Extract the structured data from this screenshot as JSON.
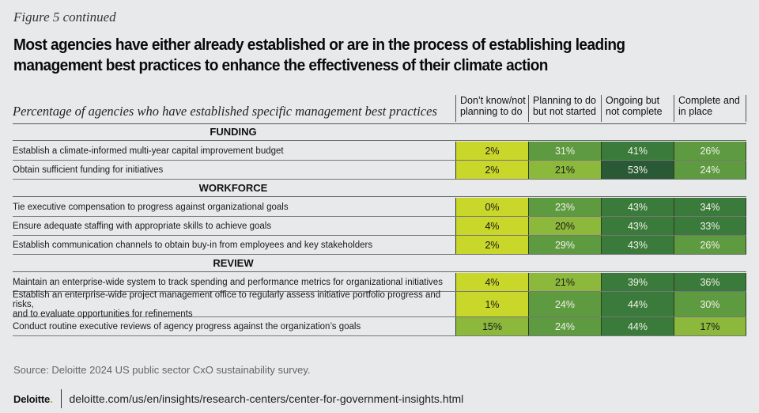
{
  "figure_label": "Figure 5 continued",
  "title_line1": "Most agencies have either already established or are in the process of establishing leading",
  "title_line2": "management best practices to enhance the effectiveness of their climate action",
  "source": "Source: Deloitte 2024 US public sector CxO sustainability survey.",
  "footer": {
    "logo": "Deloitte",
    "logo_dot": ".",
    "url": "deloitte.com/us/en/insights/research-centers/center-for-government-insights.html"
  },
  "colors": {
    "background": "#e8e9eb",
    "scale": [
      "#c9d62a",
      "#8cb83c",
      "#5e9a40",
      "#3a7a3a",
      "#2a5a35"
    ]
  },
  "chart_data": {
    "type": "table",
    "title": "Most agencies have either already established or are in the process of establishing leading management best practices to enhance the effectiveness of their climate action",
    "description": "Percentage of agencies who have established specific management best practices",
    "columns": [
      "Don’t know/not planning to do",
      "Planning to do but not started",
      "Ongoing but not complete",
      "Complete and in place"
    ],
    "columns_lines": [
      [
        "Don’t know/not",
        "planning to do"
      ],
      [
        "Planning to do",
        "but not started"
      ],
      [
        "Ongoing but",
        "not complete"
      ],
      [
        "Complete and",
        "in place"
      ]
    ],
    "unit": "%",
    "sections": [
      {
        "name": "FUNDING",
        "rows": [
          {
            "label": "Establish a climate-informed multi-year capital improvement budget",
            "values": [
              2,
              31,
              41,
              26
            ]
          },
          {
            "label": "Obtain sufficient funding for initiatives",
            "values": [
              2,
              21,
              53,
              24
            ]
          }
        ]
      },
      {
        "name": "WORKFORCE",
        "rows": [
          {
            "label": "Tie executive compensation to progress against organizational  goals",
            "values": [
              0,
              23,
              43,
              34
            ]
          },
          {
            "label": "Ensure adequate staffing with appropriate skills to achieve goals",
            "values": [
              4,
              20,
              43,
              33
            ]
          },
          {
            "label": "Establish communication channels to obtain buy-in from employees and key stakeholders",
            "values": [
              2,
              29,
              43,
              26
            ]
          }
        ]
      },
      {
        "name": "REVIEW",
        "rows": [
          {
            "label": "Maintain an enterprise-wide system to track spending and performance metrics for organizational initiatives",
            "values": [
              4,
              21,
              39,
              36
            ]
          },
          {
            "label": "Establish an enterprise-wide project management office to regularly assess initiative portfolio progress and risks, and to evaluate opportunities for refinements",
            "label_lines": [
              "Establish an enterprise-wide project management office to regularly assess initiative portfolio progress and risks,",
              "and to evaluate opportunities for refinements"
            ],
            "values": [
              1,
              24,
              44,
              30
            ]
          },
          {
            "label": "Conduct routine executive reviews of agency progress against the organization’s goals",
            "values": [
              15,
              24,
              44,
              17
            ]
          }
        ]
      }
    ]
  }
}
